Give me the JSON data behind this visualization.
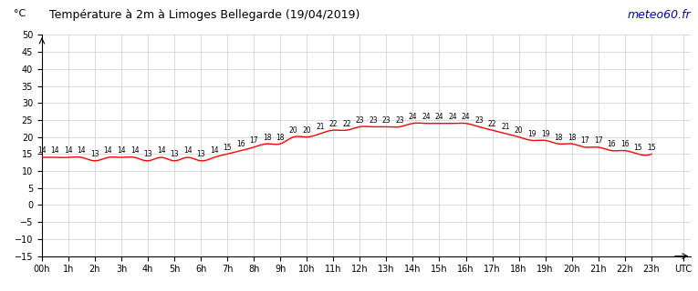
{
  "title": "Température à 2m à Limoges Bellegarde (19/04/2019)",
  "ylabel": "°C",
  "watermark": "meteo60.fr",
  "watermark_color": "#0000cc",
  "line_color": "red",
  "background_color": "#ffffff",
  "grid_color": "#cccccc",
  "all_labels": [
    14,
    14,
    14,
    14,
    13,
    14,
    14,
    14,
    13,
    14,
    13,
    14,
    13,
    14,
    15,
    16,
    17,
    18,
    18,
    20,
    20,
    21,
    22,
    22,
    23,
    23,
    23,
    23,
    24,
    24,
    24,
    24,
    24,
    23,
    22,
    21,
    20,
    19,
    19,
    18,
    18,
    17,
    17,
    16,
    16,
    15,
    15
  ],
  "ylim": [
    -15,
    50
  ],
  "yticks": [
    -15,
    -10,
    -5,
    0,
    5,
    10,
    15,
    20,
    25,
    30,
    35,
    40,
    45,
    50
  ],
  "xlim": [
    0,
    24.5
  ],
  "xlabels": [
    "00h",
    "1h",
    "2h",
    "3h",
    "4h",
    "5h",
    "6h",
    "7h",
    "8h",
    "9h",
    "10h",
    "11h",
    "12h",
    "13h",
    "14h",
    "15h",
    "16h",
    "17h",
    "18h",
    "19h",
    "20h",
    "21h",
    "22h",
    "23h",
    "UTC"
  ],
  "title_fontsize": 9,
  "tick_fontsize": 7,
  "label_fontsize": 5.5,
  "ylabel_fontsize": 8
}
